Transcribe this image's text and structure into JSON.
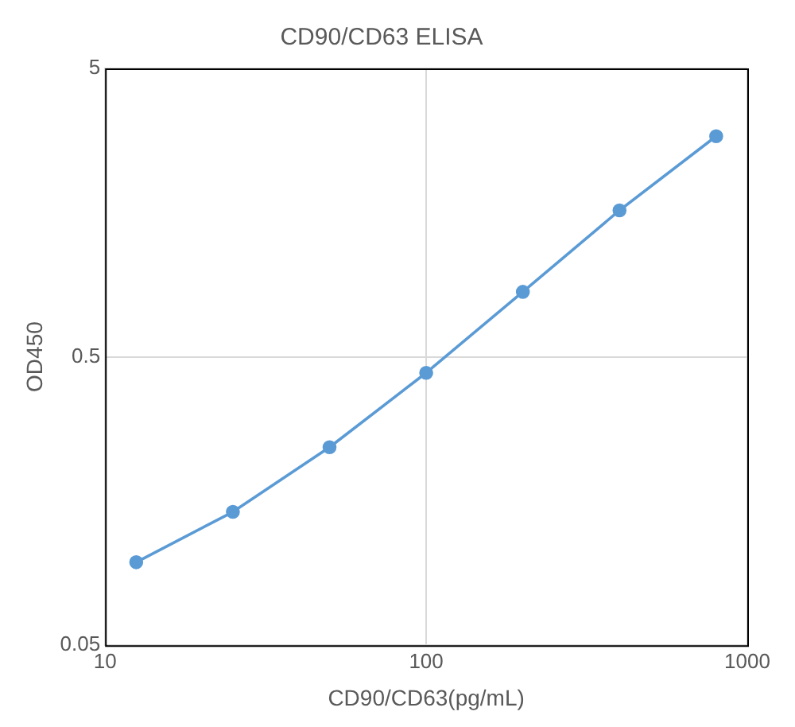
{
  "chart_data": {
    "type": "line",
    "title": "CD90/CD63 ELISA",
    "xlabel": "CD90/CD63(pg/mL)",
    "ylabel": "OD450",
    "x": [
      12.5,
      25,
      50,
      100,
      200,
      400,
      800
    ],
    "series": [
      {
        "color": "#5b9bd5",
        "values": [
          0.097,
          0.145,
          0.243,
          0.44,
          0.84,
          1.61,
          2.91
        ]
      }
    ],
    "log": "xy",
    "xlim": [
      10,
      1000
    ],
    "xticks": [
      10,
      100,
      1000
    ],
    "ylim": [
      0.05,
      5
    ],
    "yticks": [
      0.05,
      0.5,
      5
    ],
    "grid": true,
    "legend": false,
    "marker": "circle",
    "line_style": "solid"
  }
}
